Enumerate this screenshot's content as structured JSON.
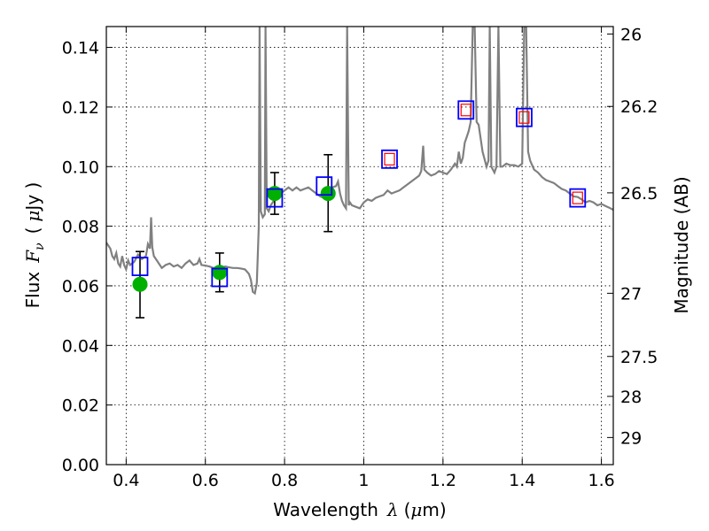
{
  "chart_data": {
    "type": "scatter",
    "xlabel": {
      "prefix": "Wavelength",
      "symbol": "λ",
      "unit_open": "(",
      "unit_mu": "μ",
      "unit_rest": "m)"
    },
    "ylabel": {
      "prefix": "Flux",
      "symbol": "F",
      "subscript": "ν",
      "unit_open": "(",
      "unit_mu": "μ",
      "unit_rest": "Jy )"
    },
    "y2label": "Magnitude (AB)",
    "xlim": [
      0.35,
      1.63
    ],
    "ylim": [
      0.0,
      0.147
    ],
    "grid": true,
    "x_ticks": [
      {
        "value": 0.4,
        "label": "0.4"
      },
      {
        "value": 0.6,
        "label": "0.6"
      },
      {
        "value": 0.8,
        "label": "0.8"
      },
      {
        "value": 1.0,
        "label": "1"
      },
      {
        "value": 1.2,
        "label": "1.2"
      },
      {
        "value": 1.4,
        "label": "1.4"
      },
      {
        "value": 1.6,
        "label": "1.6"
      }
    ],
    "y_ticks": [
      {
        "value": 0.0,
        "label": "0.00"
      },
      {
        "value": 0.02,
        "label": "0.02"
      },
      {
        "value": 0.04,
        "label": "0.04"
      },
      {
        "value": 0.06,
        "label": "0.06"
      },
      {
        "value": 0.08,
        "label": "0.08"
      },
      {
        "value": 0.1,
        "label": "0.10"
      },
      {
        "value": 0.12,
        "label": "0.12"
      },
      {
        "value": 0.14,
        "label": "0.14"
      }
    ],
    "y2_ticks": [
      {
        "flux": 0.1445,
        "label": "26"
      },
      {
        "flux": 0.1202,
        "label": "26.2"
      },
      {
        "flux": 0.0912,
        "label": "26.5"
      },
      {
        "flux": 0.0575,
        "label": "27"
      },
      {
        "flux": 0.0363,
        "label": "27.5"
      },
      {
        "flux": 0.0229,
        "label": "28"
      },
      {
        "flux": 0.0091,
        "label": "29"
      }
    ],
    "colors": {
      "spectrum": "#808080",
      "observed": "#00b000",
      "model_square": "#0000ff",
      "model_inner": "#ff0000",
      "errorbar": "#000000"
    },
    "spectrum": [
      [
        0.35,
        0.0745
      ],
      [
        0.36,
        0.0725
      ],
      [
        0.365,
        0.07
      ],
      [
        0.37,
        0.069
      ],
      [
        0.375,
        0.071
      ],
      [
        0.38,
        0.0675
      ],
      [
        0.385,
        0.0665
      ],
      [
        0.39,
        0.07
      ],
      [
        0.395,
        0.067
      ],
      [
        0.4,
        0.0655
      ],
      [
        0.405,
        0.0685
      ],
      [
        0.41,
        0.067
      ],
      [
        0.42,
        0.068
      ],
      [
        0.43,
        0.0705
      ],
      [
        0.44,
        0.069
      ],
      [
        0.45,
        0.07
      ],
      [
        0.455,
        0.074
      ],
      [
        0.46,
        0.0725
      ],
      [
        0.463,
        0.083
      ],
      [
        0.466,
        0.073
      ],
      [
        0.47,
        0.07
      ],
      [
        0.48,
        0.068
      ],
      [
        0.49,
        0.066
      ],
      [
        0.5,
        0.067
      ],
      [
        0.51,
        0.0675
      ],
      [
        0.52,
        0.0665
      ],
      [
        0.53,
        0.067
      ],
      [
        0.54,
        0.066
      ],
      [
        0.55,
        0.0675
      ],
      [
        0.56,
        0.0685
      ],
      [
        0.57,
        0.067
      ],
      [
        0.58,
        0.0675
      ],
      [
        0.585,
        0.069
      ],
      [
        0.59,
        0.067
      ],
      [
        0.6,
        0.0668
      ],
      [
        0.61,
        0.0665
      ],
      [
        0.62,
        0.066
      ],
      [
        0.63,
        0.0662
      ],
      [
        0.64,
        0.066
      ],
      [
        0.65,
        0.0665
      ],
      [
        0.66,
        0.0662
      ],
      [
        0.67,
        0.066
      ],
      [
        0.68,
        0.066
      ],
      [
        0.69,
        0.0658
      ],
      [
        0.7,
        0.0655
      ],
      [
        0.71,
        0.064
      ],
      [
        0.715,
        0.062
      ],
      [
        0.72,
        0.058
      ],
      [
        0.725,
        0.0575
      ],
      [
        0.73,
        0.061
      ],
      [
        0.735,
        0.08
      ],
      [
        0.737,
        0.147
      ],
      [
        0.74,
        0.085
      ],
      [
        0.745,
        0.083
      ],
      [
        0.75,
        0.084
      ],
      [
        0.752,
        0.147
      ],
      [
        0.755,
        0.086
      ],
      [
        0.76,
        0.085
      ],
      [
        0.765,
        0.087
      ],
      [
        0.77,
        0.088
      ],
      [
        0.78,
        0.09
      ],
      [
        0.79,
        0.091
      ],
      [
        0.8,
        0.092
      ],
      [
        0.81,
        0.093
      ],
      [
        0.82,
        0.092
      ],
      [
        0.83,
        0.093
      ],
      [
        0.84,
        0.092
      ],
      [
        0.85,
        0.0925
      ],
      [
        0.86,
        0.093
      ],
      [
        0.87,
        0.092
      ],
      [
        0.88,
        0.091
      ],
      [
        0.89,
        0.09
      ],
      [
        0.9,
        0.0895
      ],
      [
        0.905,
        0.09
      ],
      [
        0.91,
        0.092
      ],
      [
        0.92,
        0.093
      ],
      [
        0.93,
        0.0935
      ],
      [
        0.935,
        0.095
      ],
      [
        0.94,
        0.091
      ],
      [
        0.945,
        0.0885
      ],
      [
        0.95,
        0.087
      ],
      [
        0.955,
        0.086
      ],
      [
        0.958,
        0.147
      ],
      [
        0.962,
        0.087
      ],
      [
        0.965,
        0.088
      ],
      [
        0.97,
        0.087
      ],
      [
        0.98,
        0.0865
      ],
      [
        0.99,
        0.086
      ],
      [
        1.0,
        0.088
      ],
      [
        1.01,
        0.089
      ],
      [
        1.02,
        0.0885
      ],
      [
        1.03,
        0.0895
      ],
      [
        1.04,
        0.09
      ],
      [
        1.05,
        0.0905
      ],
      [
        1.06,
        0.092
      ],
      [
        1.07,
        0.091
      ],
      [
        1.08,
        0.0915
      ],
      [
        1.09,
        0.092
      ],
      [
        1.1,
        0.093
      ],
      [
        1.11,
        0.094
      ],
      [
        1.12,
        0.095
      ],
      [
        1.13,
        0.096
      ],
      [
        1.14,
        0.097
      ],
      [
        1.145,
        0.0985
      ],
      [
        1.15,
        0.107
      ],
      [
        1.153,
        0.099
      ],
      [
        1.16,
        0.098
      ],
      [
        1.17,
        0.097
      ],
      [
        1.18,
        0.0975
      ],
      [
        1.19,
        0.0985
      ],
      [
        1.2,
        0.098
      ],
      [
        1.21,
        0.0975
      ],
      [
        1.22,
        0.099
      ],
      [
        1.23,
        0.101
      ],
      [
        1.235,
        0.1
      ],
      [
        1.24,
        0.105
      ],
      [
        1.245,
        0.101
      ],
      [
        1.25,
        0.103
      ],
      [
        1.255,
        0.108
      ],
      [
        1.26,
        0.11
      ],
      [
        1.265,
        0.112
      ],
      [
        1.27,
        0.115
      ],
      [
        1.275,
        0.147
      ],
      [
        1.28,
        0.147
      ],
      [
        1.285,
        0.115
      ],
      [
        1.29,
        0.114
      ],
      [
        1.3,
        0.105
      ],
      [
        1.31,
        0.1
      ],
      [
        1.315,
        0.102
      ],
      [
        1.318,
        0.147
      ],
      [
        1.322,
        0.1
      ],
      [
        1.33,
        0.098
      ],
      [
        1.335,
        0.1
      ],
      [
        1.34,
        0.147
      ],
      [
        1.345,
        0.1
      ],
      [
        1.35,
        0.1
      ],
      [
        1.36,
        0.101
      ],
      [
        1.37,
        0.1005
      ],
      [
        1.38,
        0.1005
      ],
      [
        1.39,
        0.1
      ],
      [
        1.4,
        0.101
      ],
      [
        1.405,
        0.147
      ],
      [
        1.41,
        0.147
      ],
      [
        1.415,
        0.105
      ],
      [
        1.42,
        0.102
      ],
      [
        1.43,
        0.099
      ],
      [
        1.44,
        0.098
      ],
      [
        1.45,
        0.0965
      ],
      [
        1.46,
        0.0955
      ],
      [
        1.47,
        0.095
      ],
      [
        1.48,
        0.0945
      ],
      [
        1.49,
        0.0935
      ],
      [
        1.5,
        0.0925
      ],
      [
        1.51,
        0.092
      ],
      [
        1.52,
        0.091
      ],
      [
        1.53,
        0.09
      ],
      [
        1.54,
        0.0898
      ],
      [
        1.55,
        0.089
      ],
      [
        1.56,
        0.088
      ],
      [
        1.57,
        0.0885
      ],
      [
        1.58,
        0.088
      ],
      [
        1.59,
        0.087
      ],
      [
        1.6,
        0.0875
      ],
      [
        1.61,
        0.0868
      ],
      [
        1.62,
        0.0862
      ],
      [
        1.63,
        0.0855
      ]
    ],
    "observed_points": [
      {
        "x": 0.435,
        "y": 0.0605,
        "err_low": 0.0493,
        "err_high": 0.0715
      },
      {
        "x": 0.636,
        "y": 0.0645,
        "err_low": 0.058,
        "err_high": 0.071
      },
      {
        "x": 0.775,
        "y": 0.091,
        "err_low": 0.084,
        "err_high": 0.098
      },
      {
        "x": 0.91,
        "y": 0.091,
        "err_low": 0.0782,
        "err_high": 0.104
      }
    ],
    "model_points": [
      {
        "x": 0.435,
        "y": 0.0665,
        "inner": false
      },
      {
        "x": 0.636,
        "y": 0.0628,
        "inner": false
      },
      {
        "x": 0.775,
        "y": 0.0895,
        "inner": false
      },
      {
        "x": 0.9,
        "y": 0.0935,
        "inner": false
      },
      {
        "x": 1.065,
        "y": 0.1025,
        "inner": true
      },
      {
        "x": 1.258,
        "y": 0.119,
        "inner": true
      },
      {
        "x": 1.405,
        "y": 0.1165,
        "inner": true
      },
      {
        "x": 1.54,
        "y": 0.0895,
        "inner": true
      }
    ]
  }
}
